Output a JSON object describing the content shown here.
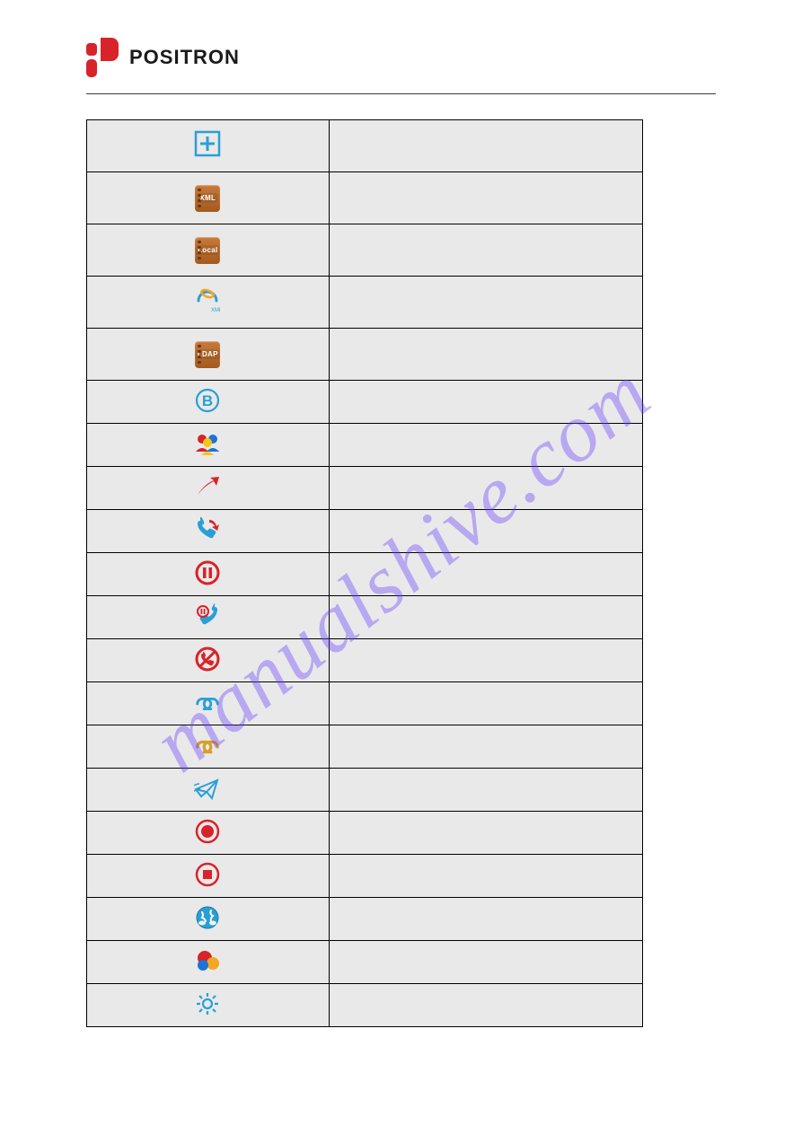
{
  "brand": {
    "name": "POSITRON",
    "logo_color": "#d8232a"
  },
  "watermark": "manualshive.com",
  "colors": {
    "cell_bg": "#e9e9e9",
    "border": "#000000",
    "accent_blue": "#2a9fd6",
    "accent_red": "#d8232a",
    "book_brown": "#b26a2d"
  },
  "rows": [
    {
      "icon": "plus-square",
      "desc": "",
      "tall": true
    },
    {
      "icon": "book-xml",
      "desc": "",
      "tall": true,
      "book_label": "XML"
    },
    {
      "icon": "book-local",
      "desc": "",
      "tall": true,
      "book_label": "Local"
    },
    {
      "icon": "ie-xml",
      "desc": "",
      "tall": true
    },
    {
      "icon": "book-ldap",
      "desc": "",
      "tall": true,
      "book_label": "LDAP"
    },
    {
      "icon": "circle-b",
      "desc": ""
    },
    {
      "icon": "people-group",
      "desc": ""
    },
    {
      "icon": "arrow-up-right",
      "desc": ""
    },
    {
      "icon": "phone-callback",
      "desc": ""
    },
    {
      "icon": "circle-pause",
      "desc": ""
    },
    {
      "icon": "phone-hold",
      "desc": ""
    },
    {
      "icon": "circle-no-phone",
      "desc": ""
    },
    {
      "icon": "link-chain-blue",
      "desc": ""
    },
    {
      "icon": "link-chain-gold",
      "desc": ""
    },
    {
      "icon": "paper-plane",
      "desc": ""
    },
    {
      "icon": "record-dot",
      "desc": ""
    },
    {
      "icon": "record-stop",
      "desc": ""
    },
    {
      "icon": "globe-hands",
      "desc": ""
    },
    {
      "icon": "color-balls",
      "desc": ""
    },
    {
      "icon": "gear",
      "desc": ""
    }
  ]
}
